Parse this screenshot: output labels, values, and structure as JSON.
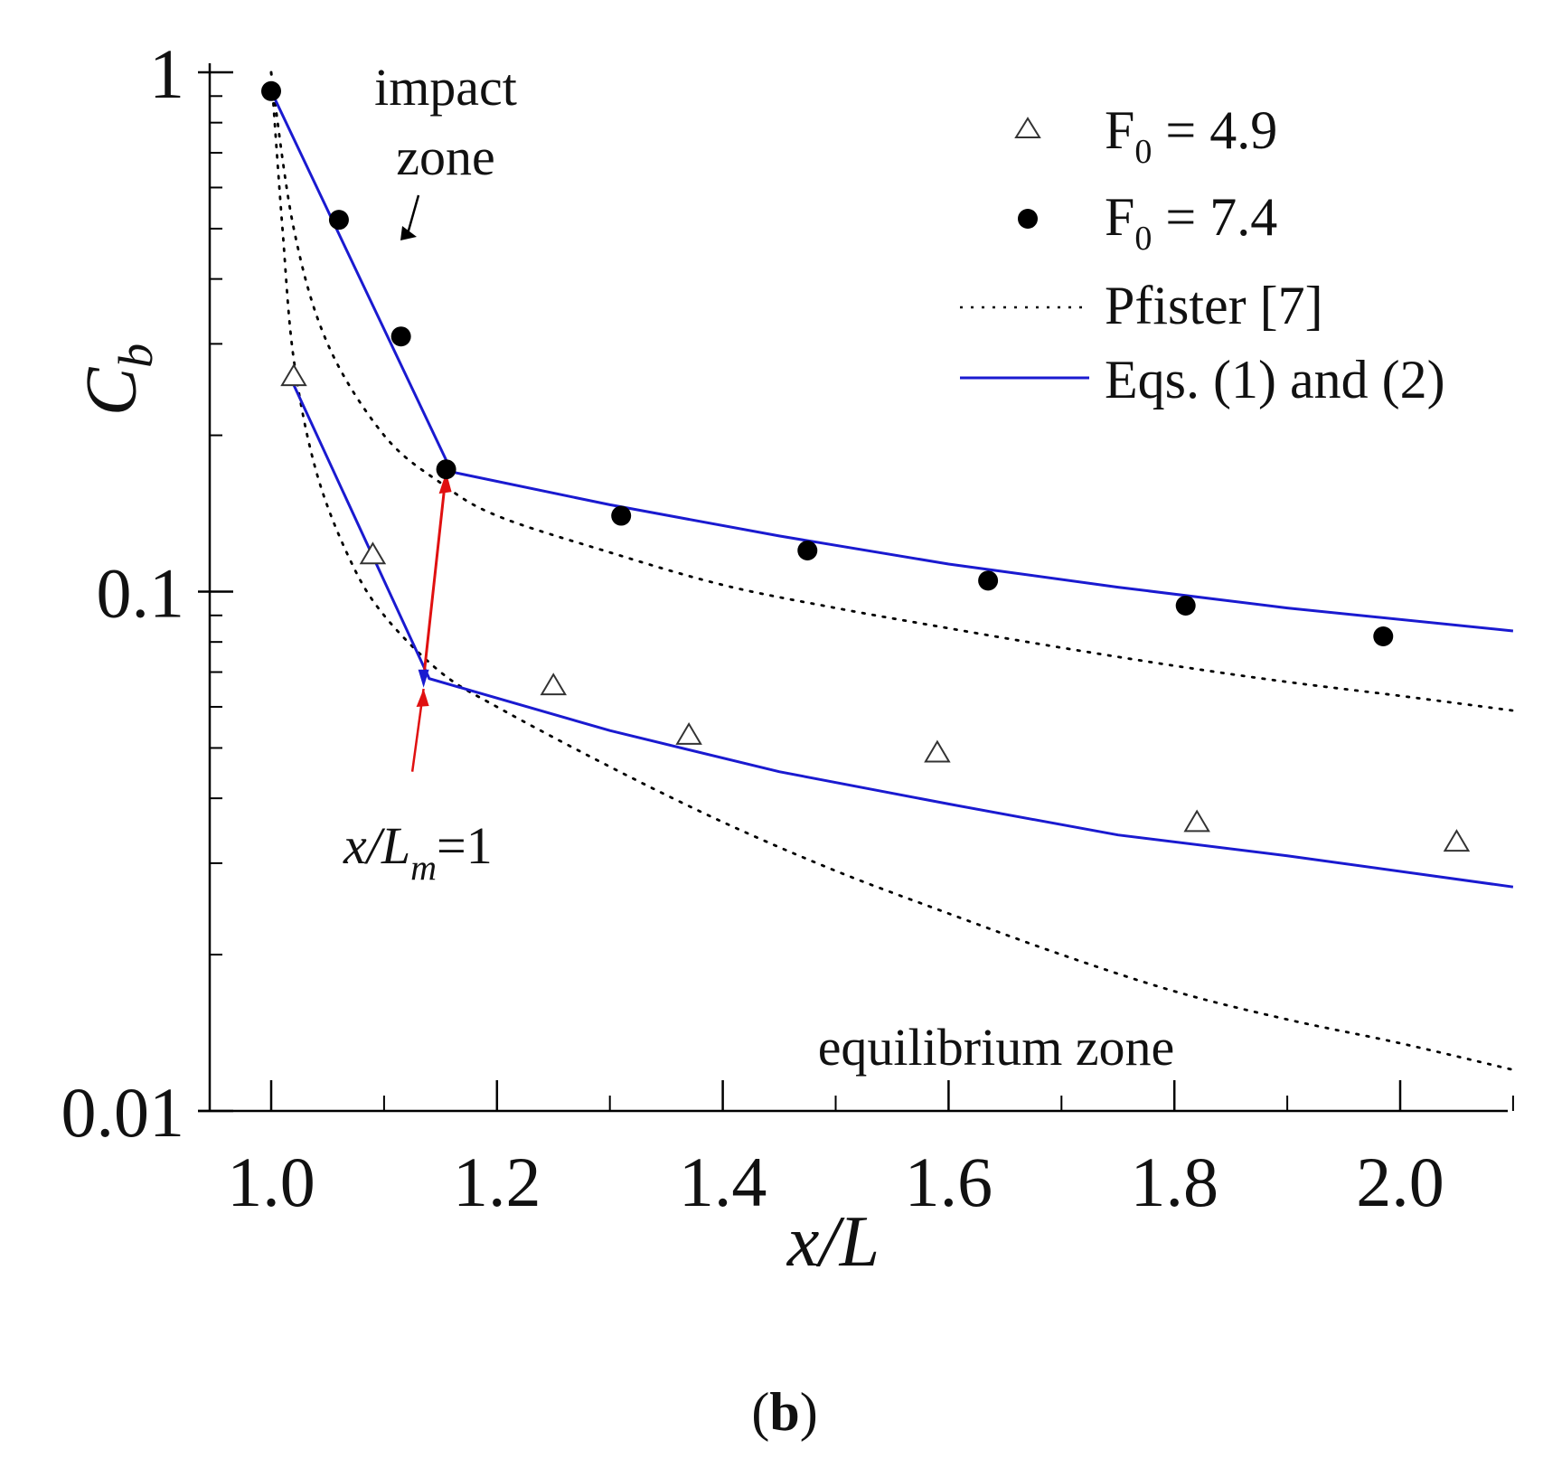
{
  "chart_data": {
    "type": "scatter",
    "xscale": "linear",
    "yscale": "log",
    "xlim": [
      0.95,
      2.1
    ],
    "ylim": [
      0.01,
      1
    ],
    "xlabel": "x/L",
    "ylabel_base": "C",
    "ylabel_sub": "b",
    "xticks": [
      {
        "value": 1.0,
        "label": "1.0"
      },
      {
        "value": 1.2,
        "label": "1.2"
      },
      {
        "value": 1.4,
        "label": "1.4"
      },
      {
        "value": 1.6,
        "label": "1.6"
      },
      {
        "value": 1.8,
        "label": "1.8"
      },
      {
        "value": 2.0,
        "label": "2.0"
      }
    ],
    "yticks": [
      {
        "value": 1,
        "label": "1"
      },
      {
        "value": 0.1,
        "label": "0.1"
      },
      {
        "value": 0.01,
        "label": "0.01"
      }
    ],
    "series": [
      {
        "name": "F0 = 4.9",
        "legend_base": "F",
        "legend_sub": "0",
        "legend_rest": " = 4.9",
        "marker": "triangle-open",
        "color": "#333333",
        "x": [
          1.02,
          1.09,
          1.25,
          1.37,
          1.59,
          1.82,
          2.05
        ],
        "y": [
          0.26,
          0.118,
          0.066,
          0.053,
          0.049,
          0.036,
          0.033
        ]
      },
      {
        "name": "F0 = 7.4",
        "legend_base": "F",
        "legend_sub": "0",
        "legend_rest": " = 7.4",
        "marker": "circle-filled",
        "color": "#000000",
        "x": [
          1.0,
          1.06,
          1.115,
          1.155,
          1.31,
          1.475,
          1.635,
          1.81,
          1.985
        ],
        "y": [
          0.92,
          0.52,
          0.31,
          0.172,
          0.14,
          0.12,
          0.105,
          0.094,
          0.082
        ]
      }
    ],
    "pfister": {
      "name": "Pfister [7]",
      "style": "dotted",
      "color": "#000000",
      "curves": [
        {
          "x": [
            1.0,
            1.02,
            1.05,
            1.1,
            1.15,
            1.2,
            1.3,
            1.4,
            1.5,
            1.6,
            1.7,
            1.8,
            1.9,
            2.0,
            2.1
          ],
          "y": [
            1.0,
            0.5,
            0.3,
            0.2,
            0.162,
            0.14,
            0.119,
            0.103,
            0.093,
            0.085,
            0.078,
            0.072,
            0.067,
            0.063,
            0.059
          ]
        },
        {
          "x": [
            1.0,
            1.01,
            1.02,
            1.04,
            1.07,
            1.1,
            1.15,
            1.2,
            1.3,
            1.4,
            1.5,
            1.6,
            1.7,
            1.8,
            1.9,
            2.0,
            2.1
          ],
          "y": [
            1.0,
            0.5,
            0.28,
            0.17,
            0.115,
            0.09,
            0.07,
            0.06,
            0.046,
            0.036,
            0.029,
            0.024,
            0.02,
            0.017,
            0.015,
            0.0135,
            0.012
          ]
        }
      ]
    },
    "equations": {
      "name": "Eqs. (1) and (2)",
      "style": "solid",
      "color": "#1a1ad0",
      "curves": [
        {
          "x": [
            1.0,
            1.16,
            1.3,
            1.45,
            1.6,
            1.75,
            1.9,
            2.1
          ],
          "y": [
            0.92,
            0.17,
            0.147,
            0.128,
            0.113,
            0.102,
            0.093,
            0.084
          ]
        },
        {
          "x": [
            1.02,
            1.14,
            1.3,
            1.45,
            1.6,
            1.75,
            1.9,
            2.1
          ],
          "y": [
            0.25,
            0.068,
            0.054,
            0.045,
            0.039,
            0.034,
            0.031,
            0.027
          ]
        }
      ]
    },
    "red_arrow": {
      "color": "#e01010",
      "from": [
        1.135,
        0.068
      ],
      "to": [
        1.155,
        0.17
      ],
      "pointer_from": [
        1.125,
        0.045
      ],
      "pointer_to": [
        1.135,
        0.065
      ]
    },
    "annotations": [
      {
        "id": "impact-zone-line1",
        "text": "impact"
      },
      {
        "id": "impact-zone-line2",
        "text": "zone"
      },
      {
        "id": "equilibrium-zone",
        "text": "equilibrium zone"
      },
      {
        "id": "xlm-label",
        "text_base": "x/L",
        "text_sub": "m",
        "text_rest": "=1"
      }
    ],
    "legend_position": "top-right",
    "panel_label": "(b)",
    "panel_letter": "b"
  }
}
